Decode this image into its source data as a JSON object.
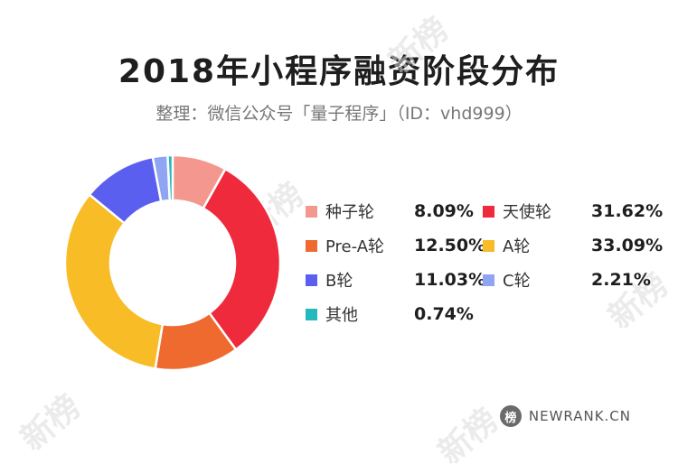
{
  "title": "2018年小程序融资阶段分布",
  "subtitle": "整理：微信公众号「量子程序」（ID：vhd999）",
  "watermark_text": "新榜",
  "footer": {
    "icon_glyph": "榜",
    "text": "NEWRANK.CN"
  },
  "chart_data": {
    "type": "pie",
    "donut": true,
    "categories": [
      "种子轮",
      "天使轮",
      "Pre-A轮",
      "A轮",
      "B轮",
      "C轮",
      "其他"
    ],
    "values": [
      8.09,
      31.62,
      12.5,
      33.09,
      11.03,
      2.21,
      0.74
    ],
    "value_labels": [
      "8.09%",
      "31.62%",
      "12.50%",
      "33.09%",
      "11.03%",
      "2.21%",
      "0.74%"
    ],
    "colors": [
      "#F4978E",
      "#EE2A3C",
      "#EE6A2E",
      "#F7BC26",
      "#5B5FEF",
      "#8FA4F2",
      "#23B9BD"
    ],
    "legend_position": "right"
  }
}
